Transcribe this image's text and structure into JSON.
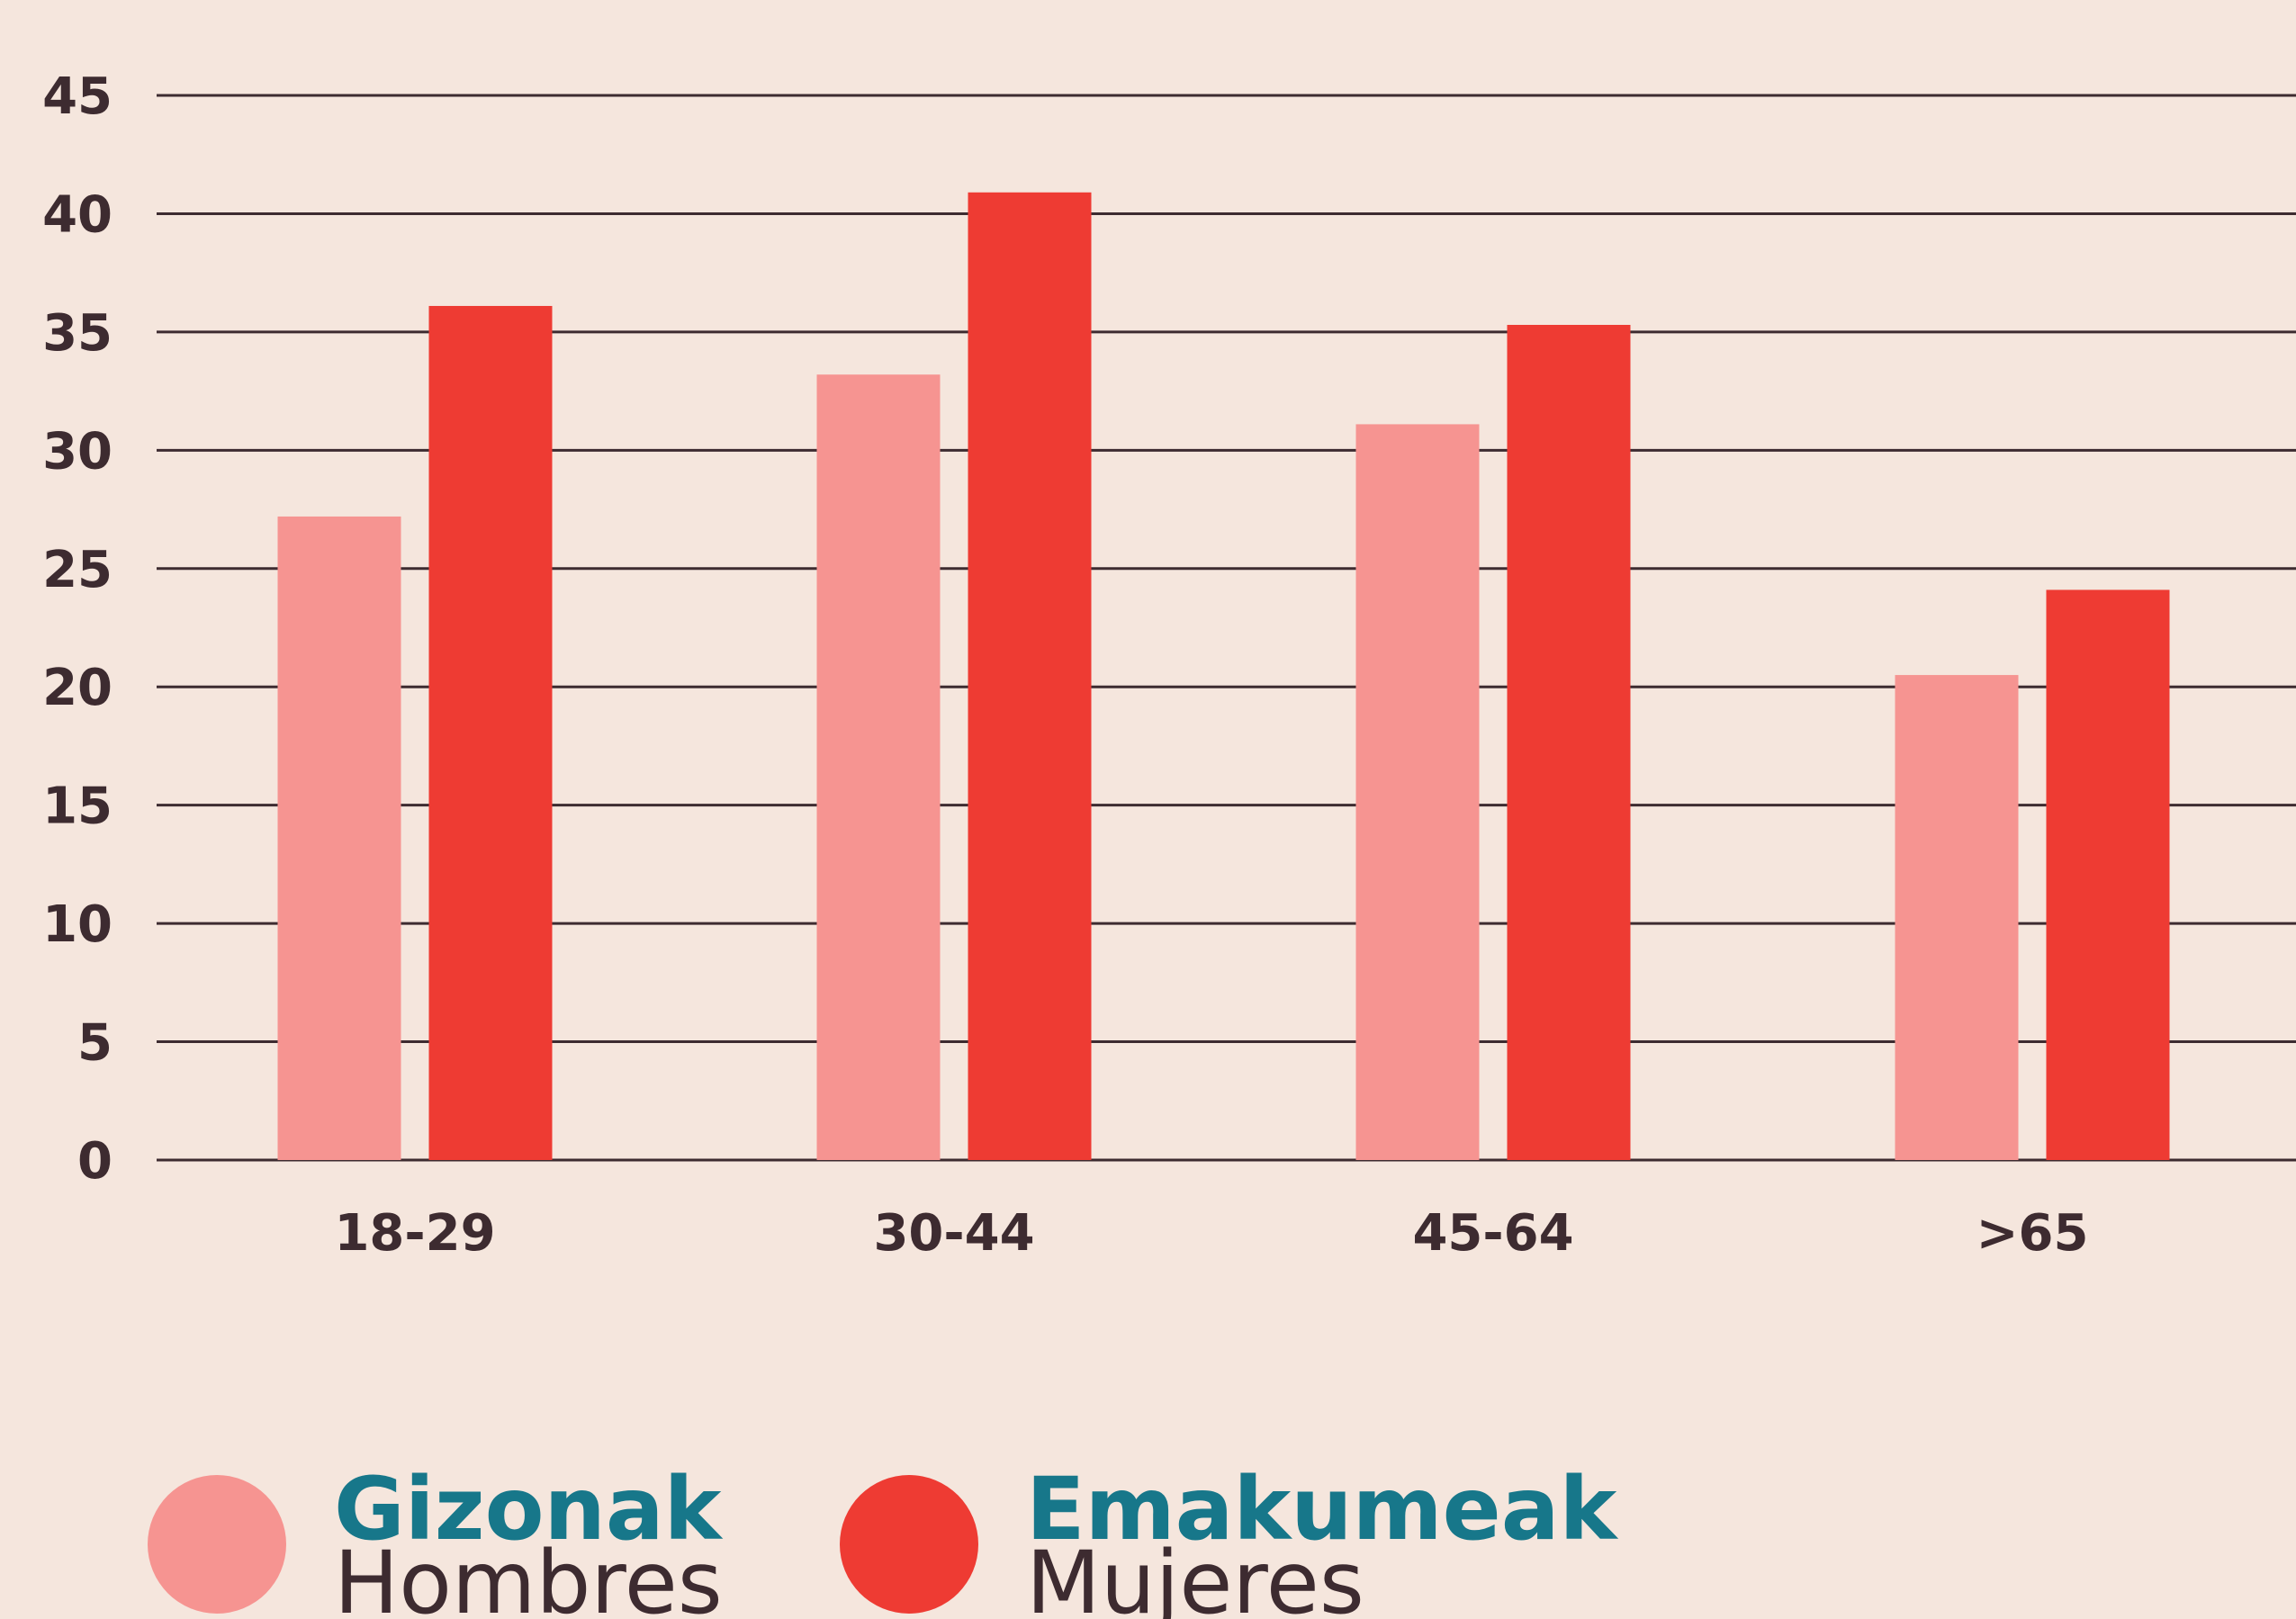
{
  "chart_data": {
    "type": "bar",
    "categories": [
      "18-29",
      "30-44",
      "45-64",
      ">65"
    ],
    "series": [
      {
        "name": "Gizonak",
        "legend_label": "Hombres",
        "color": "#f69491",
        "values": [
          27.2,
          33.2,
          31.1,
          20.5
        ]
      },
      {
        "name": "Emakumeak",
        "legend_label": "Mujeres",
        "color": "#ee3b33",
        "values": [
          36.1,
          40.9,
          35.3,
          24.1
        ]
      }
    ],
    "ylim": [
      0,
      45
    ],
    "yticks": [
      0,
      5,
      10,
      15,
      20,
      25,
      30,
      35,
      40,
      45
    ],
    "grid": true
  }
}
